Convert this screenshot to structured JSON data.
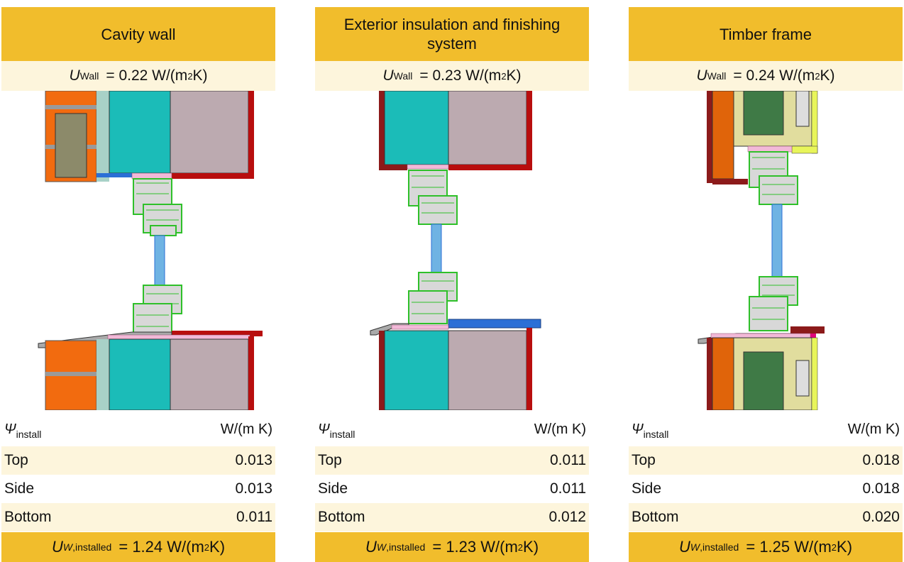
{
  "symbols": {
    "u": "U",
    "psi": "Ψ",
    "w": "W",
    "sub_wall": "Wall",
    "sub_install": "install",
    "sub_installed": ",installed",
    "sup_two": "2",
    "eq": "=",
    "unit_open": "W/(m",
    "unit_close": " K)"
  },
  "panels": [
    {
      "title": "Cavity wall",
      "u_wall": "0.22",
      "psi_unit": "W/(m K)",
      "rows": [
        {
          "label": "Top",
          "value": "0.013"
        },
        {
          "label": "Side",
          "value": "0.013"
        },
        {
          "label": "Bottom",
          "value": "0.011"
        }
      ],
      "u_installed": "1.24"
    },
    {
      "title": "Exterior insulation and finishing system",
      "u_wall": "0.23",
      "psi_unit": "W/(m K)",
      "rows": [
        {
          "label": "Top",
          "value": "0.011"
        },
        {
          "label": "Side",
          "value": "0.011"
        },
        {
          "label": "Bottom",
          "value": "0.012"
        }
      ],
      "u_installed": "1.23"
    },
    {
      "title": "Timber frame",
      "u_wall": "0.24",
      "psi_unit": "W/(m K)",
      "rows": [
        {
          "label": "Top",
          "value": "0.018"
        },
        {
          "label": "Side",
          "value": "0.018"
        },
        {
          "label": "Bottom",
          "value": "0.020"
        }
      ],
      "u_installed": "1.25"
    }
  ],
  "colors": {
    "header": "#f1bd2c",
    "band_light": "#fdf5dc",
    "brick": "#f26b0f",
    "insulation_teal": "#1bbcb8",
    "masonry_mauve": "#bcaab0",
    "plaster_red": "#b80e0e",
    "glass": "#6fb3e3",
    "frame_green": "#2fc02a",
    "seal_pink": "#f2b9d8",
    "timber_dark_green": "#3f7a46",
    "timber_beige": "#e1dd9e",
    "timber_brown": "#8c1a1a",
    "timber_orange": "#e0640a"
  }
}
